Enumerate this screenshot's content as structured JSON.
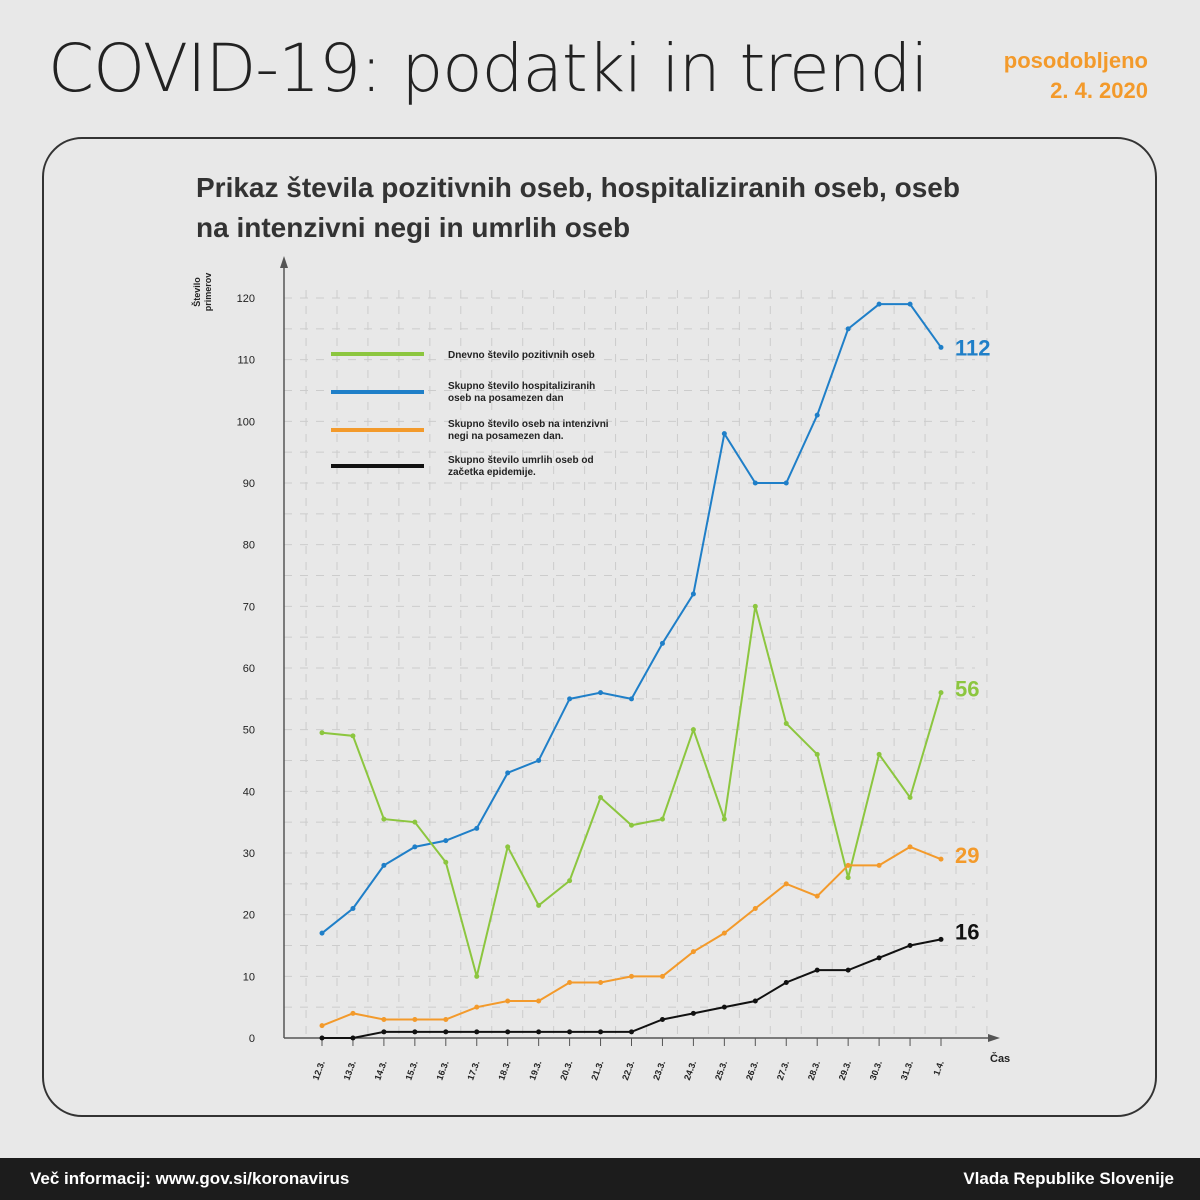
{
  "header": {
    "title": "COVID-19: podatki in trendi",
    "updated_label": "posodobljeno",
    "updated_date": "2. 4. 2020"
  },
  "footer": {
    "info": "Več informacij: www.gov.si/koronavirus",
    "org": "Vlada Republike Slovenije"
  },
  "chart_data": {
    "type": "line",
    "title": "Prikaz števila pozitivnih oseb, hospitaliziranih oseb, oseb na intenzivni negi in umrlih oseb",
    "title_line1": "Prikaz števila pozitivnih oseb, hospitaliziranih oseb, oseb",
    "title_line2": "na intenzivni negi in umrlih oseb",
    "ylabel": "Število primerov",
    "xlabel": "Čas",
    "ylim": [
      0,
      120
    ],
    "yticks": [
      0,
      10,
      20,
      30,
      40,
      50,
      60,
      70,
      80,
      90,
      100,
      110,
      120
    ],
    "categories": [
      "12.3.",
      "13.3.",
      "14.3.",
      "15.3.",
      "16.3.",
      "17.3.",
      "18.3.",
      "19.3.",
      "20.3.",
      "21.3.",
      "22.3.",
      "23.3.",
      "24.3.",
      "25.3.",
      "26.3.",
      "27.3.",
      "28.3.",
      "29.3.",
      "30.3.",
      "31.3.",
      "1.4."
    ],
    "legend_placement": "top-left",
    "series": [
      {
        "name": "Dnevno število pozitivnih oseb",
        "color": "#8cc63f",
        "end_label": "56",
        "values": [
          49.5,
          49,
          35.5,
          35,
          28.5,
          10,
          31,
          21.5,
          25.5,
          39,
          34.5,
          35.5,
          50,
          35.5,
          70,
          51,
          46,
          26,
          46,
          39,
          56
        ]
      },
      {
        "name": "Skupno število hospitaliziranih oseb na posamezen dan",
        "color": "#1f7fc8",
        "end_label": "112",
        "values": [
          17,
          21,
          28,
          31,
          32,
          34,
          43,
          45,
          55,
          56,
          55,
          64,
          72,
          98,
          90,
          90,
          101,
          115,
          119,
          119,
          112
        ]
      },
      {
        "name": "Skupno število oseb na intenzivni negi na posamezen dan.",
        "color": "#f39a2b",
        "end_label": "29",
        "values": [
          2,
          4,
          3,
          3,
          3,
          5,
          6,
          6,
          9,
          9,
          10,
          10,
          14,
          17,
          21,
          25,
          23,
          28,
          28,
          31,
          29
        ]
      },
      {
        "name": "Skupno število umrlih oseb od začetka epidemije.",
        "color": "#111111",
        "end_label": "16",
        "values": [
          0,
          0,
          1,
          1,
          1,
          1,
          1,
          1,
          1,
          1,
          1,
          3,
          4,
          5,
          6,
          9,
          11,
          11,
          13,
          15,
          16
        ]
      }
    ]
  }
}
